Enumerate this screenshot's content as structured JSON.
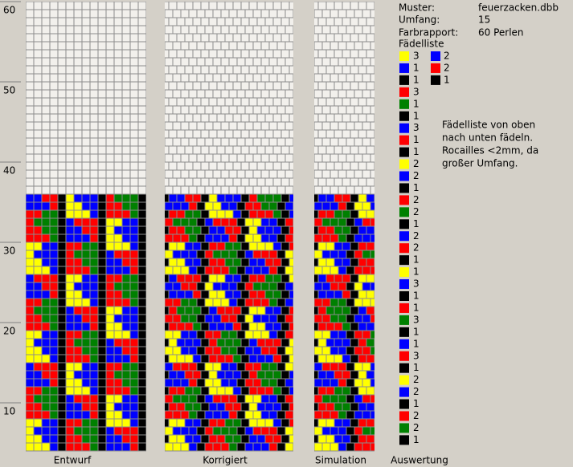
{
  "ruler": [
    60,
    50,
    40,
    30,
    20,
    10
  ],
  "info": {
    "pattern_label": "Muster:",
    "pattern_value": "feuerzacken.dbb",
    "circumference_label": "Umfang:",
    "circumference_value": "15",
    "repeat_label": "Farbrapport:",
    "repeat_value": "60 Perlen",
    "list_title": "Fädelliste"
  },
  "threading": [
    {
      "color": "#ffff00",
      "count": "3"
    },
    {
      "color": "#0000ff",
      "count": "1"
    },
    {
      "color": "#000000",
      "count": "1"
    },
    {
      "color": "#ff0000",
      "count": "3"
    },
    {
      "color": "#008000",
      "count": "1"
    },
    {
      "color": "#000000",
      "count": "1"
    },
    {
      "color": "#0000ff",
      "count": "3"
    },
    {
      "color": "#ff0000",
      "count": "1"
    },
    {
      "color": "#000000",
      "count": "1"
    },
    {
      "color": "#ffff00",
      "count": "2"
    },
    {
      "color": "#0000ff",
      "count": "2"
    },
    {
      "color": "#000000",
      "count": "1"
    },
    {
      "color": "#ff0000",
      "count": "2"
    },
    {
      "color": "#008000",
      "count": "2"
    },
    {
      "color": "#000000",
      "count": "1"
    },
    {
      "color": "#0000ff",
      "count": "2"
    },
    {
      "color": "#ff0000",
      "count": "2"
    },
    {
      "color": "#000000",
      "count": "1"
    },
    {
      "color": "#ffff00",
      "count": "1"
    },
    {
      "color": "#0000ff",
      "count": "3"
    },
    {
      "color": "#000000",
      "count": "1"
    },
    {
      "color": "#ff0000",
      "count": "1"
    },
    {
      "color": "#008000",
      "count": "3"
    },
    {
      "color": "#000000",
      "count": "1"
    },
    {
      "color": "#0000ff",
      "count": "1"
    },
    {
      "color": "#ff0000",
      "count": "3"
    },
    {
      "color": "#000000",
      "count": "1"
    },
    {
      "color": "#ffff00",
      "count": "2"
    },
    {
      "color": "#0000ff",
      "count": "2"
    },
    {
      "color": "#000000",
      "count": "1"
    },
    {
      "color": "#ff0000",
      "count": "2"
    },
    {
      "color": "#008000",
      "count": "2"
    },
    {
      "color": "#000000",
      "count": "1"
    }
  ],
  "threading_extra": [
    {
      "color": "#0000ff",
      "count": "2"
    },
    {
      "color": "#ff0000",
      "count": "2"
    },
    {
      "color": "#000000",
      "count": "1"
    }
  ],
  "note": [
    "Fädelliste von oben",
    "nach unten fädeln.",
    "Rocailles <2mm, da",
    "großer Umfang."
  ],
  "tabs": [
    "Entwurf",
    "Korrigiert",
    "Simulation",
    "Auswertung"
  ]
}
